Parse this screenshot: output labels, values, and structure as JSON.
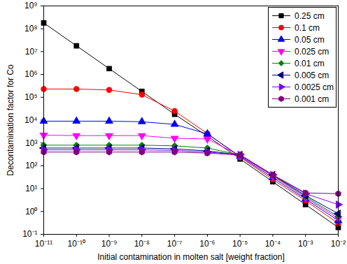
{
  "chart_data": {
    "type": "line",
    "x_label": "Initial contamination in molten salt [weight fraction]",
    "y_label": "Decontamination factor for Co",
    "log": true,
    "grid": false,
    "legend": "top-right",
    "x": [
      1e-11,
      1e-10,
      1e-09,
      1e-08,
      1e-07,
      1e-06,
      1e-05,
      0.0001,
      0.001,
      0.01
    ],
    "xlim": [
      1e-11,
      0.01
    ],
    "xticks": [
      {
        "value": 1e-11,
        "label": "10⁻¹¹"
      },
      {
        "value": 1e-10,
        "label": "10⁻¹⁰"
      },
      {
        "value": 1e-09,
        "label": "10⁻⁹"
      },
      {
        "value": 1e-08,
        "label": "10⁻⁸"
      },
      {
        "value": 1e-07,
        "label": "10⁻⁷"
      },
      {
        "value": 1e-06,
        "label": "10⁻⁶"
      },
      {
        "value": 1e-05,
        "label": "10⁻⁵"
      },
      {
        "value": 0.0001,
        "label": "10⁻⁴"
      },
      {
        "value": 0.001,
        "label": "10⁻³"
      },
      {
        "value": 0.01,
        "label": "10⁻²"
      }
    ],
    "ylim": [
      0.1,
      1000000000.0
    ],
    "yticks": [
      {
        "value": 0.1,
        "label": "10⁻¹"
      },
      {
        "value": 1,
        "label": "10⁰"
      },
      {
        "value": 10,
        "label": "10¹"
      },
      {
        "value": 100,
        "label": "10²"
      },
      {
        "value": 1000,
        "label": "10³"
      },
      {
        "value": 10000,
        "label": "10⁴"
      },
      {
        "value": 100000,
        "label": "10⁵"
      },
      {
        "value": 1000000,
        "label": "10⁶"
      },
      {
        "value": 10000000,
        "label": "10⁷"
      },
      {
        "value": 100000000,
        "label": "10⁸"
      },
      {
        "value": 1000000000,
        "label": "10⁹"
      }
    ],
    "series": [
      {
        "name": "0.25 cm",
        "color": "#000000",
        "marker": "square",
        "values": [
          180000000,
          18000000,
          1800000,
          180000,
          18000,
          2000,
          200,
          20,
          2,
          0.2
        ]
      },
      {
        "name": "0.1 cm",
        "color": "#ff0000",
        "marker": "circle",
        "values": [
          230000,
          230000,
          210000,
          130000,
          25000,
          2600,
          240,
          25,
          3,
          0.3
        ]
      },
      {
        "name": "0.05 cm",
        "color": "#0000ff",
        "marker": "triangle-up",
        "values": [
          9000,
          9000,
          9000,
          8500,
          6500,
          2500,
          260,
          30,
          3.5,
          0.4
        ]
      },
      {
        "name": "0.025 cm",
        "color": "#ff00ff",
        "marker": "triangle-down",
        "values": [
          2200,
          2100,
          2100,
          2100,
          1600,
          1500,
          280,
          35,
          4,
          0.5
        ]
      },
      {
        "name": "0.01 cm",
        "color": "#008000",
        "marker": "diamond",
        "values": [
          800,
          800,
          800,
          800,
          750,
          600,
          300,
          38,
          4.5,
          0.6
        ]
      },
      {
        "name": "0.005 cm",
        "color": "#000080",
        "marker": "triangle-left",
        "values": [
          600,
          600,
          600,
          600,
          550,
          450,
          300,
          40,
          5,
          0.8
        ]
      },
      {
        "name": "0.0025 cm",
        "color": "#8000ff",
        "marker": "triangle-right",
        "values": [
          500,
          500,
          500,
          500,
          470,
          400,
          300,
          40,
          6,
          2
        ]
      },
      {
        "name": "0.001 cm",
        "color": "#800080",
        "marker": "hexagon",
        "values": [
          400,
          400,
          400,
          400,
          400,
          360,
          300,
          40,
          6.5,
          6
        ]
      }
    ]
  }
}
